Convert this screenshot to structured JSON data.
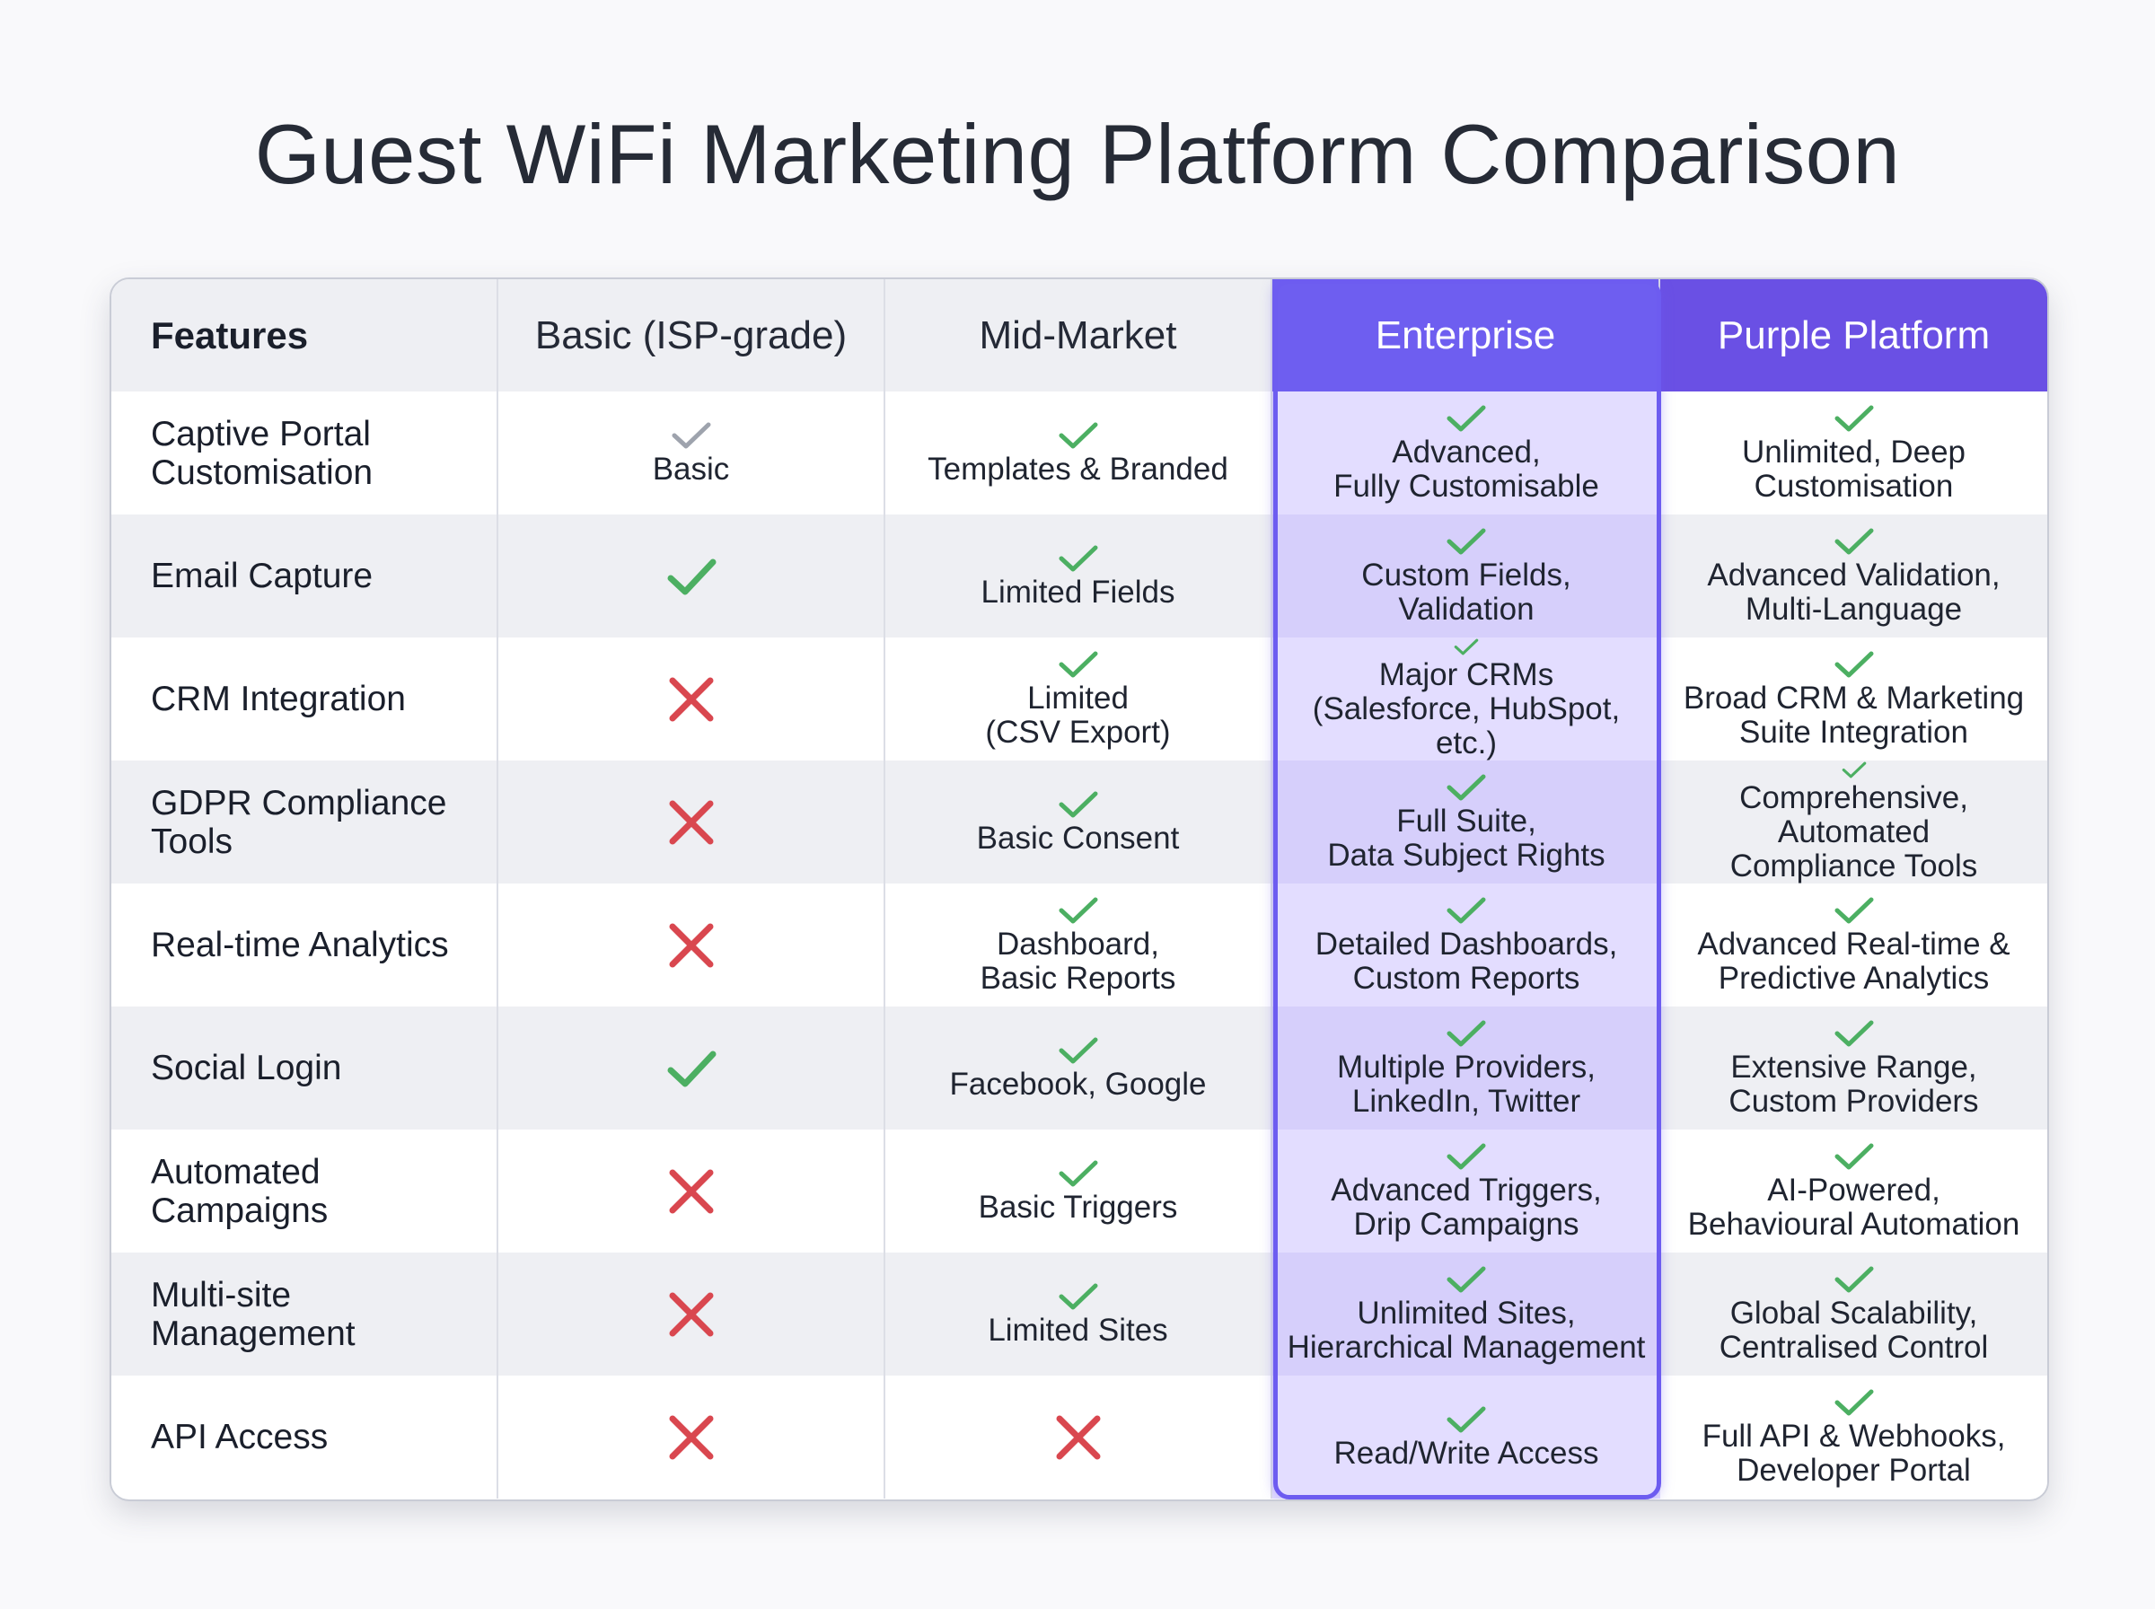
{
  "title": "Guest WiFi Marketing Platform Comparison",
  "colors": {
    "check": "#4caf62",
    "check_grey": "#9ea3ad",
    "cross": "#d9474f",
    "enterprise_header": "#6e5ef0",
    "purple_header": "#6a50e4",
    "enterprise_tint": "#e3ddff"
  },
  "headers": [
    "Features",
    "Basic (ISP-grade)",
    "Mid-Market",
    "Enterprise",
    "Purple Platform"
  ],
  "rows": [
    {
      "feature": [
        "Captive Portal",
        "Customisation"
      ],
      "basic": {
        "mark": "check-grey",
        "text": [
          "Basic"
        ]
      },
      "mid": {
        "mark": "check",
        "text": [
          "Templates & Branded"
        ]
      },
      "enterprise": {
        "mark": "check",
        "text": [
          "Advanced,",
          "Fully Customisable"
        ]
      },
      "purple": {
        "mark": "check",
        "text": [
          "Unlimited, Deep",
          "Customisation"
        ]
      }
    },
    {
      "feature": [
        "Email Capture"
      ],
      "basic": {
        "mark": "check-big",
        "text": []
      },
      "mid": {
        "mark": "check",
        "text": [
          "Limited Fields"
        ]
      },
      "enterprise": {
        "mark": "check",
        "text": [
          "Custom Fields,",
          "Validation"
        ]
      },
      "purple": {
        "mark": "check",
        "text": [
          "Advanced Validation,",
          "Multi-Language"
        ]
      }
    },
    {
      "feature": [
        "CRM Integration"
      ],
      "basic": {
        "mark": "cross",
        "text": []
      },
      "mid": {
        "mark": "check",
        "text": [
          "Limited",
          "(CSV Export)"
        ]
      },
      "enterprise": {
        "mark": "check",
        "text": [
          "Major CRMs",
          "(Salesforce, HubSpot, etc.)"
        ]
      },
      "purple": {
        "mark": "check",
        "text": [
          "Broad CRM & Marketing",
          "Suite Integration"
        ]
      }
    },
    {
      "feature": [
        "GDPR Compliance",
        "Tools"
      ],
      "basic": {
        "mark": "cross",
        "text": []
      },
      "mid": {
        "mark": "check",
        "text": [
          "Basic Consent"
        ]
      },
      "enterprise": {
        "mark": "check",
        "text": [
          "Full Suite,",
          "Data Subject Rights"
        ]
      },
      "purple": {
        "mark": "check",
        "text": [
          "Comprehensive, Automated",
          "Compliance Tools"
        ]
      }
    },
    {
      "feature": [
        "Real-time Analytics"
      ],
      "basic": {
        "mark": "cross",
        "text": []
      },
      "mid": {
        "mark": "check",
        "text": [
          "Dashboard,",
          "Basic Reports"
        ]
      },
      "enterprise": {
        "mark": "check",
        "text": [
          "Detailed Dashboards,",
          "Custom Reports"
        ]
      },
      "purple": {
        "mark": "check",
        "text": [
          "Advanced Real-time &",
          "Predictive Analytics"
        ]
      }
    },
    {
      "feature": [
        "Social Login"
      ],
      "basic": {
        "mark": "check-big",
        "text": []
      },
      "mid": {
        "mark": "check",
        "text": [
          "Facebook, Google"
        ]
      },
      "enterprise": {
        "mark": "check",
        "text": [
          "Multiple Providers,",
          "LinkedIn, Twitter"
        ]
      },
      "purple": {
        "mark": "check",
        "text": [
          "Extensive Range,",
          "Custom Providers"
        ]
      }
    },
    {
      "feature": [
        "Automated",
        "Campaigns"
      ],
      "basic": {
        "mark": "cross",
        "text": []
      },
      "mid": {
        "mark": "check",
        "text": [
          "Basic Triggers"
        ]
      },
      "enterprise": {
        "mark": "check",
        "text": [
          "Advanced Triggers,",
          "Drip Campaigns"
        ]
      },
      "purple": {
        "mark": "check",
        "text": [
          "AI-Powered,",
          "Behavioural Automation"
        ]
      }
    },
    {
      "feature": [
        "Multi-site",
        "Management"
      ],
      "basic": {
        "mark": "cross",
        "text": []
      },
      "mid": {
        "mark": "check",
        "text": [
          "Limited Sites"
        ]
      },
      "enterprise": {
        "mark": "check",
        "text": [
          "Unlimited Sites,",
          "Hierarchical Management"
        ]
      },
      "purple": {
        "mark": "check",
        "text": [
          "Global Scalability,",
          "Centralised Control"
        ]
      }
    },
    {
      "feature": [
        "API Access"
      ],
      "basic": {
        "mark": "cross",
        "text": []
      },
      "mid": {
        "mark": "cross",
        "text": []
      },
      "enterprise": {
        "mark": "check",
        "text": [
          "Read/Write Access"
        ]
      },
      "purple": {
        "mark": "check",
        "text": [
          "Full API & Webhooks,",
          "Developer Portal"
        ]
      }
    }
  ]
}
